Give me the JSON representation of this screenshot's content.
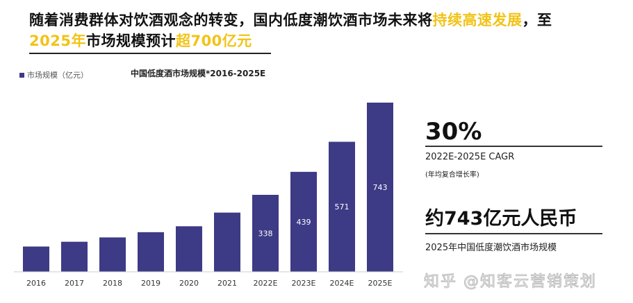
{
  "headline": {
    "part1": "随着消费群体对饮酒观念的转变，国内低度潮饮酒市场未来将",
    "highlight1": "持续高速发展",
    "part2": "，至",
    "highlight2": "2025年",
    "part3": "市场规模预计",
    "highlight3": "超700亿元"
  },
  "chart_data": {
    "type": "bar",
    "title": "中国低度酒市场规模*2016-2025E",
    "legend": [
      {
        "name": "市场规模（亿元）",
        "color": "#3d3a86"
      }
    ],
    "legend_position": "top-left",
    "categories": [
      "2016",
      "2017",
      "2018",
      "2019",
      "2020",
      "2021",
      "2022E",
      "2023E",
      "2024E",
      "2025E"
    ],
    "series": [
      {
        "name": "市场规模（亿元）",
        "values": [
          111,
          132,
          151,
          174,
          200,
          260,
          338,
          439,
          571,
          743
        ]
      }
    ],
    "data_labels": true,
    "grid": false,
    "ylim": [
      0,
      743
    ],
    "bar_color": "#3d3a86"
  },
  "stats": {
    "cagr_value": "30%",
    "cagr_label": "2022E-2025E CAGR",
    "cagr_note": "(年均复合增长率)",
    "market_value": "约743亿元人民币",
    "market_label": "2025年中国低度潮饮酒市场规模"
  },
  "watermark": "知乎 @知客云营销策划"
}
